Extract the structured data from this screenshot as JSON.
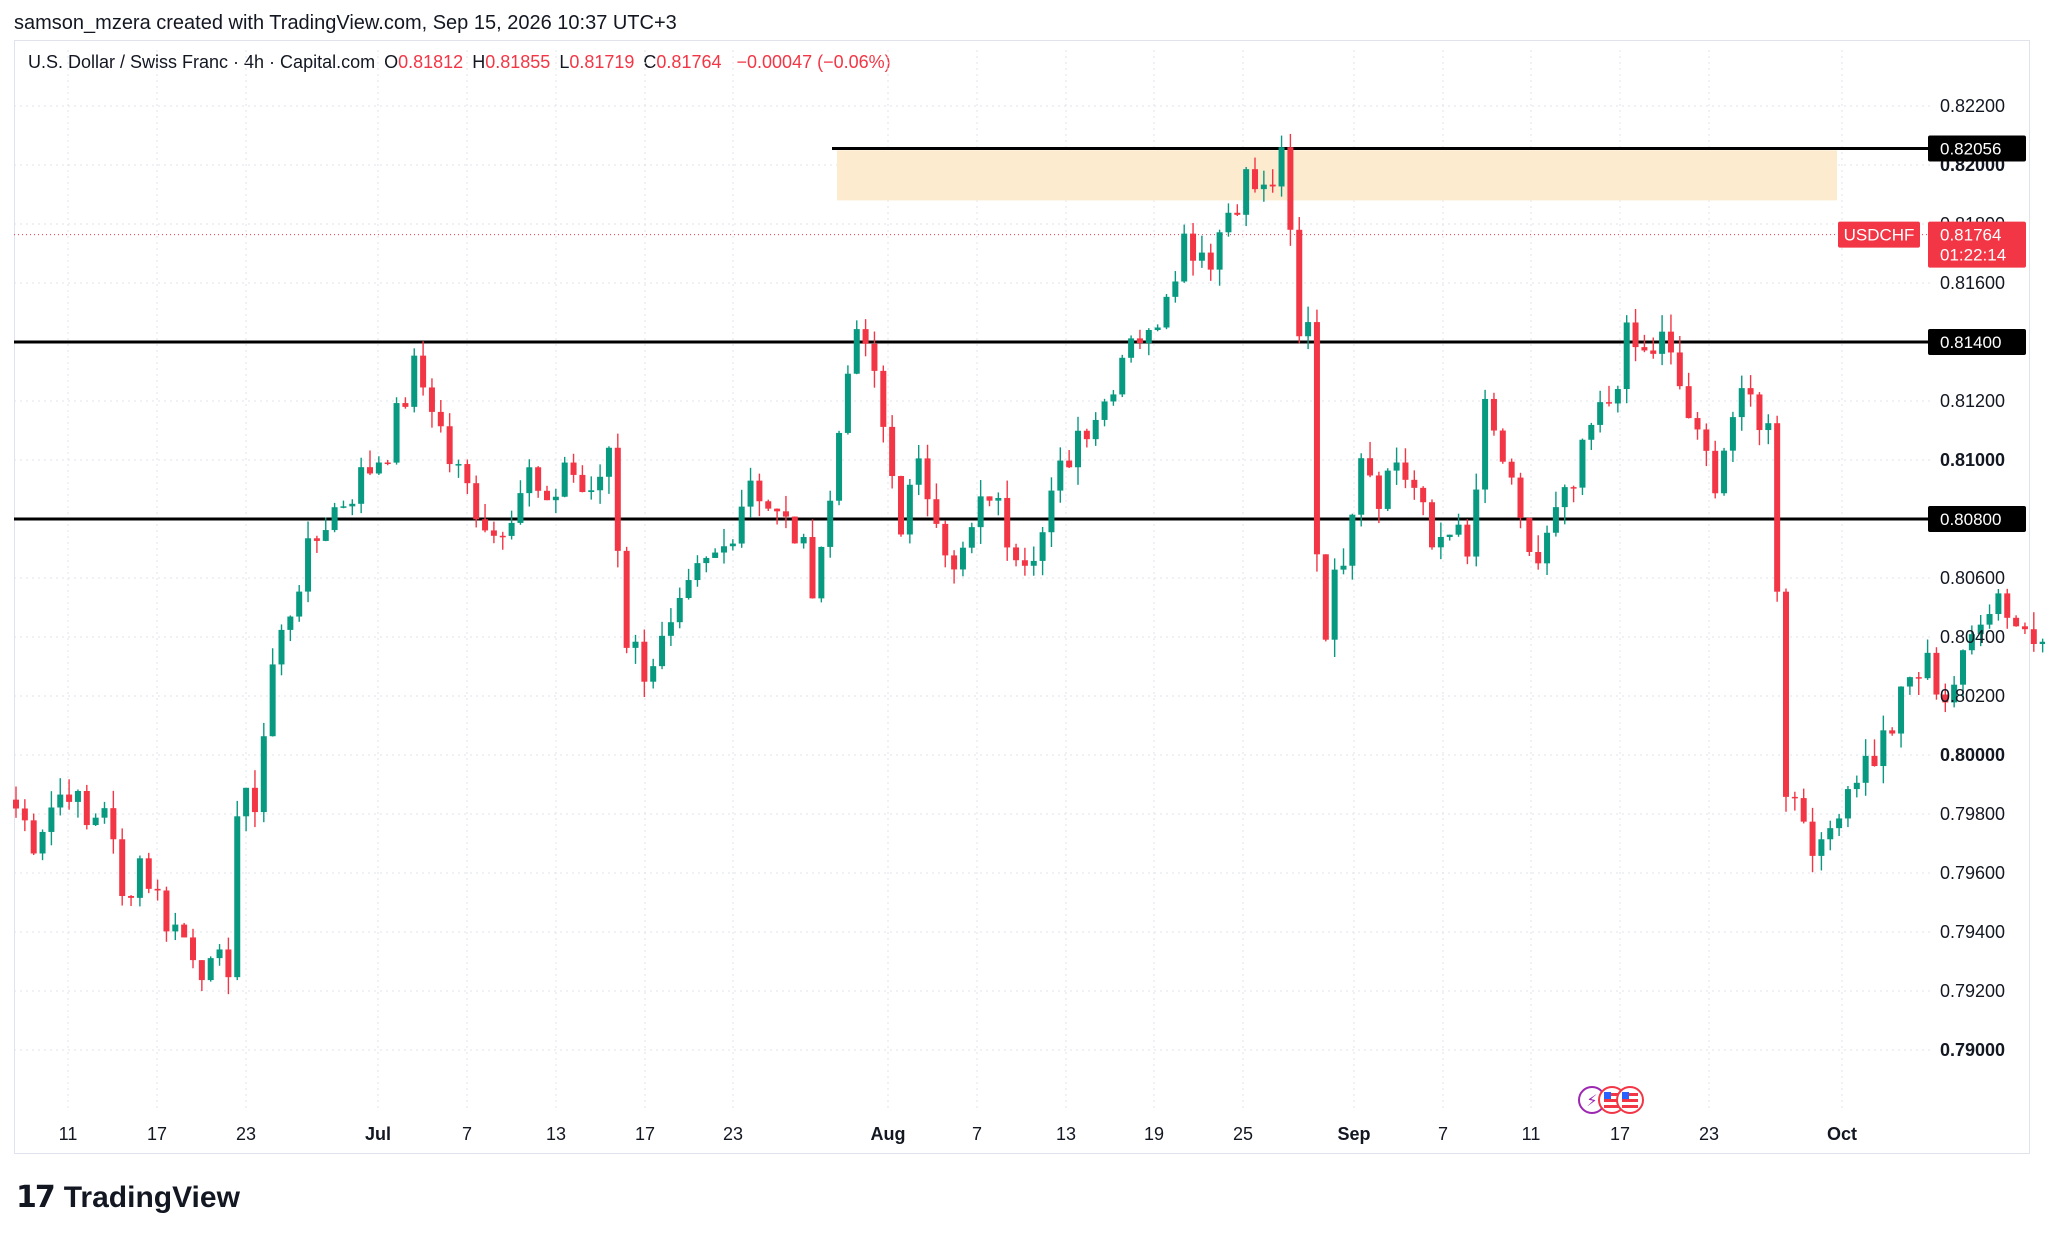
{
  "header": {
    "credit": "samson_mzera created with TradingView.com, Sep 15, 2026 10:37 UTC+3"
  },
  "legend": {
    "symbol": "U.S. Dollar / Swiss Franc · 4h · Capital.com",
    "open_key": "O",
    "open": "0.81812",
    "high_key": "H",
    "high": "0.81855",
    "low_key": "L",
    "low": "0.81719",
    "close_key": "C",
    "close": "0.81764",
    "change": "−0.00047 (−0.06%)"
  },
  "footer": {
    "brand": "TradingView"
  },
  "chart_data": {
    "type": "candlestick",
    "symbol": "USDCHF",
    "timeframe": "4h",
    "y_axis": {
      "range": [
        0.789,
        0.8225
      ],
      "ticks": [
        "0.82200",
        "0.82000",
        "0.81800",
        "0.81600",
        "0.81400",
        "0.81200",
        "0.81000",
        "0.80800",
        "0.80600",
        "0.80400",
        "0.80200",
        "0.80000",
        "0.79800",
        "0.79600",
        "0.79400",
        "0.79200",
        "0.79000"
      ],
      "bold_ticks": [
        "0.82000",
        "0.81000",
        "0.80000",
        "0.79000"
      ]
    },
    "x_axis": {
      "ticks": [
        "11",
        "17",
        "23",
        "Jul",
        "7",
        "13",
        "17",
        "23",
        "Aug",
        "7",
        "13",
        "19",
        "25",
        "Sep",
        "7",
        "11",
        "17",
        "23",
        "Oct"
      ],
      "bold_ticks": [
        "Jul",
        "Aug",
        "Sep",
        "Oct"
      ]
    },
    "horizontal_lines": [
      {
        "price": 0.82056,
        "label": "0.82056"
      },
      {
        "price": 0.814,
        "label": "0.81400"
      },
      {
        "price": 0.808,
        "label": "0.80800"
      }
    ],
    "zone": {
      "from": 0.8188,
      "to": 0.8205,
      "color": "#fdebcf"
    },
    "last_price": {
      "label": "USDCHF",
      "price": "0.81764",
      "value": 0.81764,
      "countdown": "01:22:14"
    },
    "colors": {
      "up": "#089981",
      "down": "#f23645",
      "grid": "#e0e3eb",
      "line": "#000000"
    },
    "path_anchors": [
      [
        0,
        0.7982
      ],
      [
        2,
        0.7972
      ],
      [
        4,
        0.7983
      ],
      [
        6,
        0.799
      ],
      [
        8,
        0.7975
      ],
      [
        10,
        0.7985
      ],
      [
        12,
        0.795
      ],
      [
        14,
        0.7965
      ],
      [
        17,
        0.7945
      ],
      [
        20,
        0.7935
      ],
      [
        22,
        0.7925
      ],
      [
        24,
        0.793
      ],
      [
        25,
        0.798
      ],
      [
        27,
        0.7985
      ],
      [
        29,
        0.803
      ],
      [
        32,
        0.806
      ],
      [
        35,
        0.808
      ],
      [
        38,
        0.809
      ],
      [
        42,
        0.8105
      ],
      [
        45,
        0.813
      ],
      [
        47,
        0.812
      ],
      [
        49,
        0.81
      ],
      [
        51,
        0.809
      ],
      [
        54,
        0.8075
      ],
      [
        56,
        0.8085
      ],
      [
        58,
        0.8095
      ],
      [
        60,
        0.808
      ],
      [
        62,
        0.81
      ],
      [
        65,
        0.8085
      ],
      [
        67,
        0.8105
      ],
      [
        69,
        0.804
      ],
      [
        71,
        0.803
      ],
      [
        74,
        0.804
      ],
      [
        77,
        0.806
      ],
      [
        80,
        0.807
      ],
      [
        83,
        0.8095
      ],
      [
        86,
        0.808
      ],
      [
        88,
        0.8075
      ],
      [
        90,
        0.806
      ],
      [
        92,
        0.8085
      ],
      [
        94,
        0.8135
      ],
      [
        96,
        0.814
      ],
      [
        98,
        0.811
      ],
      [
        100,
        0.808
      ],
      [
        102,
        0.8095
      ],
      [
        104,
        0.8085
      ],
      [
        106,
        0.806
      ],
      [
        108,
        0.8075
      ],
      [
        110,
        0.809
      ],
      [
        112,
        0.8075
      ],
      [
        114,
        0.807
      ],
      [
        116,
        0.8075
      ],
      [
        118,
        0.8095
      ],
      [
        120,
        0.811
      ],
      [
        123,
        0.812
      ],
      [
        126,
        0.8145
      ],
      [
        128,
        0.814
      ],
      [
        130,
        0.816
      ],
      [
        132,
        0.8175
      ],
      [
        135,
        0.817
      ],
      [
        137,
        0.8185
      ],
      [
        139,
        0.8195
      ],
      [
        141,
        0.819
      ],
      [
        143,
        0.82
      ],
      [
        144,
        0.8175
      ],
      [
        145,
        0.814
      ],
      [
        146,
        0.815
      ],
      [
        147,
        0.807
      ],
      [
        148,
        0.8045
      ],
      [
        150,
        0.807
      ],
      [
        152,
        0.8105
      ],
      [
        154,
        0.809
      ],
      [
        156,
        0.81
      ],
      [
        158,
        0.809
      ],
      [
        160,
        0.807
      ],
      [
        162,
        0.808
      ],
      [
        164,
        0.8065
      ],
      [
        166,
        0.8115
      ],
      [
        168,
        0.81
      ],
      [
        170,
        0.8075
      ],
      [
        172,
        0.8065
      ],
      [
        174,
        0.808
      ],
      [
        176,
        0.809
      ],
      [
        178,
        0.811
      ],
      [
        180,
        0.812
      ],
      [
        182,
        0.814
      ],
      [
        184,
        0.8135
      ],
      [
        186,
        0.814
      ],
      [
        188,
        0.8125
      ],
      [
        190,
        0.8105
      ],
      [
        192,
        0.8095
      ],
      [
        194,
        0.8115
      ],
      [
        196,
        0.812
      ],
      [
        198,
        0.811
      ],
      [
        199,
        0.806
      ],
      [
        200,
        0.799
      ],
      [
        202,
        0.798
      ],
      [
        204,
        0.7965
      ],
      [
        206,
        0.7985
      ],
      [
        208,
        0.7995
      ],
      [
        210,
        0.8
      ],
      [
        212,
        0.801
      ],
      [
        214,
        0.8025
      ],
      [
        216,
        0.803
      ],
      [
        218,
        0.802
      ],
      [
        220,
        0.803
      ],
      [
        222,
        0.805
      ],
      [
        224,
        0.8055
      ],
      [
        226,
        0.8045
      ],
      [
        228,
        0.804
      ],
      [
        230,
        0.805
      ],
      [
        231,
        0.809
      ],
      [
        233,
        0.8095
      ],
      [
        235,
        0.809
      ],
      [
        237,
        0.81
      ],
      [
        239,
        0.8105
      ],
      [
        241,
        0.812
      ],
      [
        243,
        0.8135
      ],
      [
        245,
        0.8125
      ],
      [
        247,
        0.81
      ],
      [
        249,
        0.8065
      ],
      [
        251,
        0.8075
      ],
      [
        253,
        0.809
      ],
      [
        255,
        0.811
      ],
      [
        257,
        0.8095
      ],
      [
        259,
        0.81
      ],
      [
        261,
        0.809
      ],
      [
        263,
        0.8085
      ],
      [
        265,
        0.81
      ],
      [
        267,
        0.809
      ],
      [
        269,
        0.81
      ],
      [
        270,
        0.8115
      ],
      [
        272,
        0.813
      ],
      [
        274,
        0.8145
      ],
      [
        276,
        0.8155
      ],
      [
        278,
        0.8175
      ],
      [
        280,
        0.8185
      ],
      [
        281,
        0.8175
      ],
      [
        282,
        0.816
      ],
      [
        284,
        0.817
      ],
      [
        285,
        0.81764
      ]
    ]
  }
}
